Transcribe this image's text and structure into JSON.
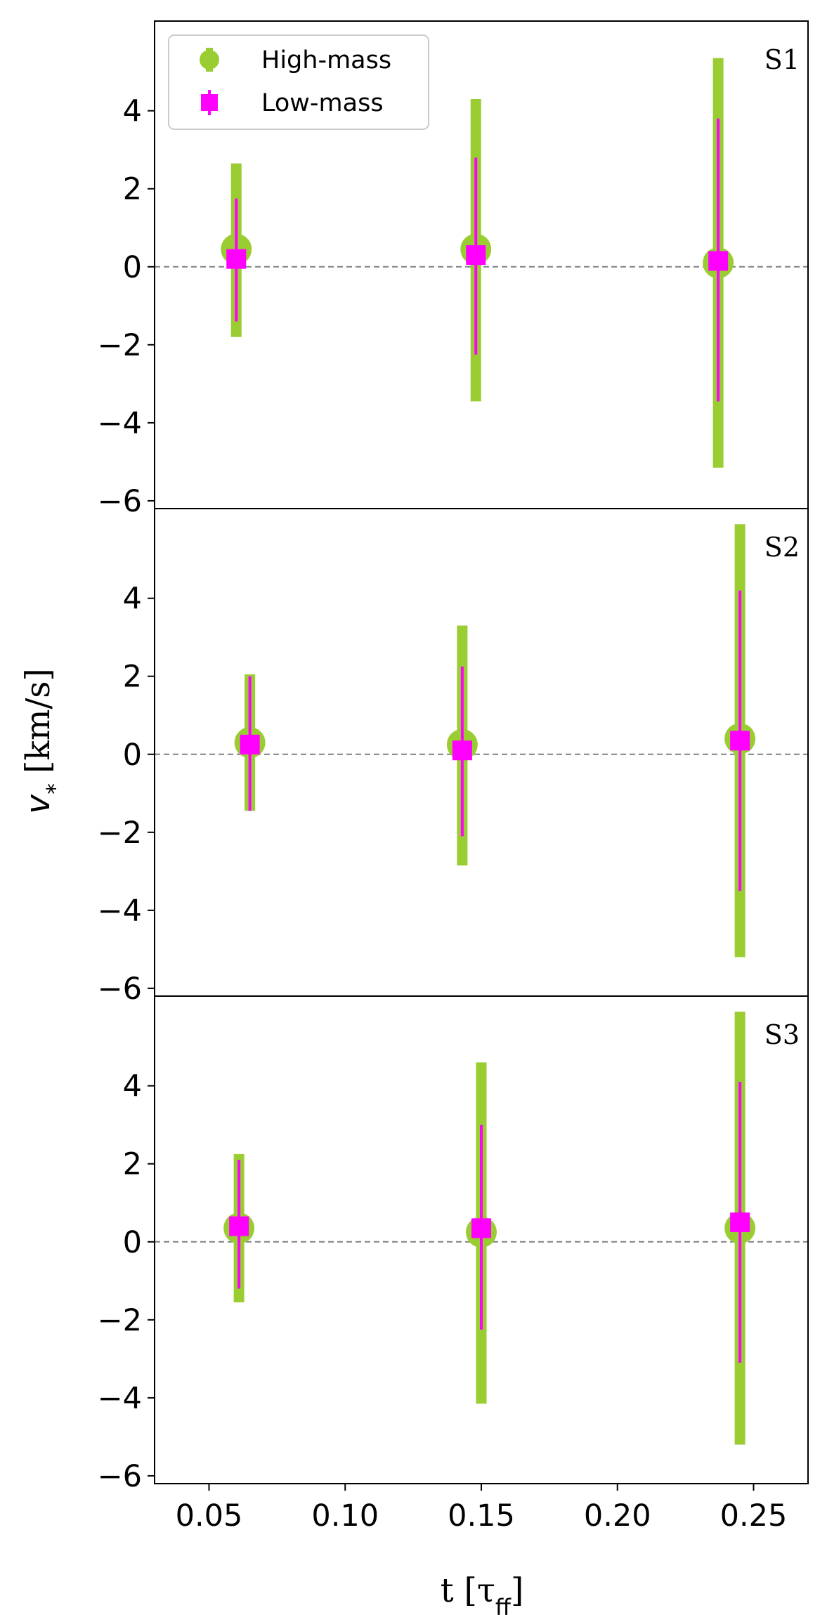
{
  "colors": {
    "high_mass": "#9acd32",
    "low_mass": "#ff00ff",
    "zero_line": "#808080",
    "axes": "#000000"
  },
  "chart_data": {
    "type": "scatter",
    "subtype": "errorbar",
    "xlabel": "t [τ_ff]",
    "ylabel": "v_* [km/s]",
    "xlim": [
      0.03,
      0.27
    ],
    "ylim": [
      -6.2,
      6.3
    ],
    "x_ticks": [
      0.05,
      0.1,
      0.15,
      0.2,
      0.25
    ],
    "x_tick_labels": [
      "0.05",
      "0.10",
      "0.15",
      "0.20",
      "0.25"
    ],
    "y_ticks": [
      -6,
      -4,
      -2,
      0,
      2,
      4
    ],
    "y_tick_labels": [
      "−6",
      "−4",
      "−2",
      "0",
      "2",
      "4"
    ],
    "grid": false,
    "zero_reference_line": true,
    "legend": {
      "placement": "top-left",
      "entries": [
        "High-mass",
        "Low-mass"
      ]
    },
    "panels": [
      {
        "label": "S1",
        "series": [
          {
            "name": "High-mass",
            "marker": "circle",
            "points": [
              {
                "x": 0.06,
                "y": 0.45,
                "lo": -1.8,
                "hi": 2.65
              },
              {
                "x": 0.148,
                "y": 0.45,
                "lo": -3.45,
                "hi": 4.3
              },
              {
                "x": 0.237,
                "y": 0.1,
                "lo": -5.15,
                "hi": 5.35
              }
            ]
          },
          {
            "name": "Low-mass",
            "marker": "square",
            "points": [
              {
                "x": 0.06,
                "y": 0.2,
                "lo": -1.4,
                "hi": 1.75
              },
              {
                "x": 0.148,
                "y": 0.3,
                "lo": -2.25,
                "hi": 2.8
              },
              {
                "x": 0.237,
                "y": 0.15,
                "lo": -3.45,
                "hi": 3.8
              }
            ]
          }
        ]
      },
      {
        "label": "S2",
        "series": [
          {
            "name": "High-mass",
            "marker": "circle",
            "points": [
              {
                "x": 0.065,
                "y": 0.3,
                "lo": -1.45,
                "hi": 2.05
              },
              {
                "x": 0.143,
                "y": 0.25,
                "lo": -2.85,
                "hi": 3.3
              },
              {
                "x": 0.245,
                "y": 0.4,
                "lo": -5.2,
                "hi": 5.9
              }
            ]
          },
          {
            "name": "Low-mass",
            "marker": "square",
            "points": [
              {
                "x": 0.065,
                "y": 0.25,
                "lo": -1.45,
                "hi": 2.0
              },
              {
                "x": 0.143,
                "y": 0.1,
                "lo": -2.1,
                "hi": 2.25
              },
              {
                "x": 0.245,
                "y": 0.35,
                "lo": -3.5,
                "hi": 4.2
              }
            ]
          }
        ]
      },
      {
        "label": "S3",
        "series": [
          {
            "name": "High-mass",
            "marker": "circle",
            "points": [
              {
                "x": 0.061,
                "y": 0.35,
                "lo": -1.55,
                "hi": 2.25
              },
              {
                "x": 0.15,
                "y": 0.25,
                "lo": -4.15,
                "hi": 4.6
              },
              {
                "x": 0.245,
                "y": 0.35,
                "lo": -5.2,
                "hi": 5.9
              }
            ]
          },
          {
            "name": "Low-mass",
            "marker": "square",
            "points": [
              {
                "x": 0.061,
                "y": 0.4,
                "lo": -1.2,
                "hi": 2.1
              },
              {
                "x": 0.15,
                "y": 0.35,
                "lo": -2.25,
                "hi": 3.0
              },
              {
                "x": 0.245,
                "y": 0.5,
                "lo": -3.1,
                "hi": 4.1
              }
            ]
          }
        ]
      }
    ]
  }
}
